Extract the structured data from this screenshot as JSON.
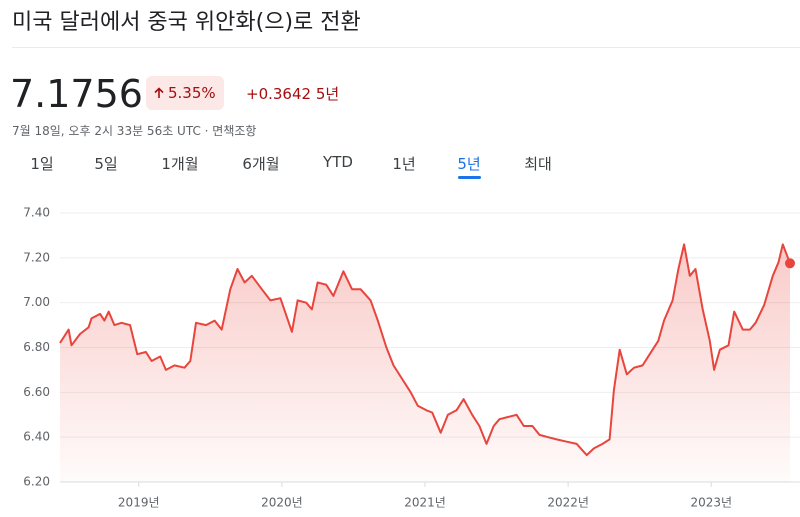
{
  "header": {
    "title": "미국 달러에서 중국 위안화(으)로 전환",
    "price": "7.1756",
    "change_percent": "5.35%",
    "change_abs": "+0.3642",
    "change_period": "5년",
    "timestamp": "7월 18일, 오후 2시 33분 56초 UTC · 면책조항"
  },
  "tabs": {
    "items": [
      "1일",
      "5일",
      "1개월",
      "6개월",
      "YTD",
      "1년",
      "5년",
      "최대"
    ],
    "selected": 6
  },
  "chart_data": {
    "type": "line",
    "color": "#e8453c",
    "grid": true,
    "xlim": [
      2018.45,
      2023.55
    ],
    "xticks": [
      {
        "value": 2019,
        "label": "2019년"
      },
      {
        "value": 2020,
        "label": "2020년"
      },
      {
        "value": 2021,
        "label": "2021년"
      },
      {
        "value": 2022,
        "label": "2022년"
      },
      {
        "value": 2023,
        "label": "2023년"
      }
    ],
    "ylim": [
      6.2,
      7.4
    ],
    "yticks": [
      {
        "value": 6.2,
        "label": "6.20"
      },
      {
        "value": 6.4,
        "label": "6.40"
      },
      {
        "value": 6.6,
        "label": "6.60"
      },
      {
        "value": 6.8,
        "label": "6.80"
      },
      {
        "value": 7.0,
        "label": "7.00"
      },
      {
        "value": 7.2,
        "label": "7.20"
      },
      {
        "value": 7.4,
        "label": "7.40"
      }
    ],
    "x": [
      2018.45,
      2018.51,
      2018.53,
      2018.59,
      2018.65,
      2018.67,
      2018.73,
      2018.76,
      2018.79,
      2018.83,
      2018.88,
      2018.94,
      2018.99,
      2019.05,
      2019.09,
      2019.15,
      2019.19,
      2019.25,
      2019.32,
      2019.36,
      2019.4,
      2019.47,
      2019.53,
      2019.58,
      2019.64,
      2019.69,
      2019.74,
      2019.79,
      2019.86,
      2019.92,
      2019.99,
      2020.07,
      2020.11,
      2020.17,
      2020.21,
      2020.25,
      2020.31,
      2020.36,
      2020.43,
      2020.49,
      2020.55,
      2020.62,
      2020.67,
      2020.73,
      2020.78,
      2020.84,
      2020.9,
      2020.95,
      2021.01,
      2021.05,
      2021.11,
      2021.16,
      2021.22,
      2021.27,
      2021.33,
      2021.38,
      2021.43,
      2021.48,
      2021.52,
      2021.58,
      2021.64,
      2021.69,
      2021.75,
      2021.8,
      2021.86,
      2021.92,
      2021.99,
      2022.06,
      2022.13,
      2022.18,
      2022.24,
      2022.29,
      2022.32,
      2022.36,
      2022.41,
      2022.46,
      2022.52,
      2022.57,
      2022.63,
      2022.67,
      2022.73,
      2022.77,
      2022.81,
      2022.85,
      2022.89,
      2022.94,
      2022.99,
      2023.02,
      2023.06,
      2023.12,
      2023.16,
      2023.22,
      2023.27,
      2023.31,
      2023.37,
      2023.43,
      2023.47,
      2023.5,
      2023.55
    ],
    "values": [
      6.82,
      6.88,
      6.81,
      6.86,
      6.89,
      6.93,
      6.95,
      6.92,
      6.96,
      6.9,
      6.91,
      6.9,
      6.77,
      6.78,
      6.74,
      6.76,
      6.7,
      6.72,
      6.71,
      6.74,
      6.91,
      6.9,
      6.92,
      6.88,
      7.06,
      7.15,
      7.09,
      7.12,
      7.06,
      7.01,
      7.02,
      6.87,
      7.01,
      7.0,
      6.97,
      7.09,
      7.08,
      7.03,
      7.14,
      7.06,
      7.06,
      7.01,
      6.92,
      6.8,
      6.72,
      6.66,
      6.6,
      6.54,
      6.52,
      6.51,
      6.42,
      6.5,
      6.52,
      6.57,
      6.5,
      6.45,
      6.37,
      6.45,
      6.48,
      6.49,
      6.5,
      6.45,
      6.45,
      6.41,
      6.4,
      6.39,
      6.38,
      6.37,
      6.32,
      6.35,
      6.37,
      6.39,
      6.61,
      6.79,
      6.68,
      6.71,
      6.72,
      6.77,
      6.83,
      6.92,
      7.01,
      7.15,
      7.26,
      7.12,
      7.15,
      6.97,
      6.83,
      6.7,
      6.79,
      6.81,
      6.96,
      6.88,
      6.88,
      6.91,
      6.99,
      7.12,
      7.18,
      7.26,
      7.1756
    ]
  }
}
